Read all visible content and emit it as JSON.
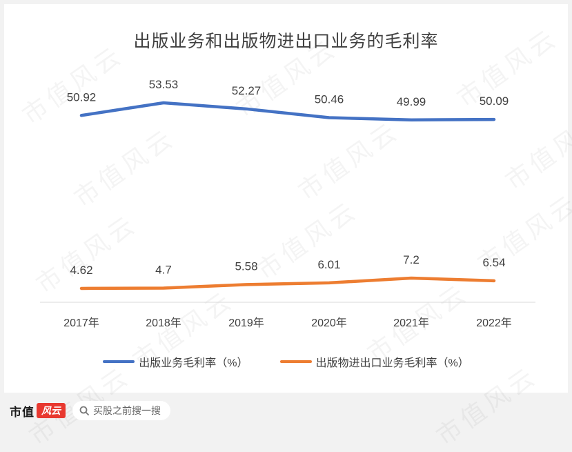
{
  "chart_data": {
    "type": "line",
    "title": "出版业务和出版物进出口业务的毛利率",
    "categories": [
      "2017年",
      "2018年",
      "2019年",
      "2020年",
      "2021年",
      "2022年"
    ],
    "series": [
      {
        "name": "出版业务毛利率（%）",
        "values": [
          50.92,
          53.53,
          52.27,
          50.46,
          49.99,
          50.09
        ],
        "labels": [
          "50.92",
          "53.53",
          "52.27",
          "50.46",
          "49.99",
          "50.09"
        ],
        "color": "#4472c4"
      },
      {
        "name": "出版物进出口业务毛利率（%）",
        "values": [
          4.62,
          4.7,
          5.58,
          6.01,
          7.2,
          6.54
        ],
        "labels": [
          "4.62",
          "4.7",
          "5.58",
          "6.01",
          "7.2",
          "6.54"
        ],
        "color": "#ed7d31"
      }
    ],
    "legend": "bottom",
    "grid": false
  },
  "watermark_text": "市值风云",
  "footer": {
    "brand_text": "市值",
    "brand_mark": "风云",
    "search_placeholder": "买股之前搜一搜"
  }
}
